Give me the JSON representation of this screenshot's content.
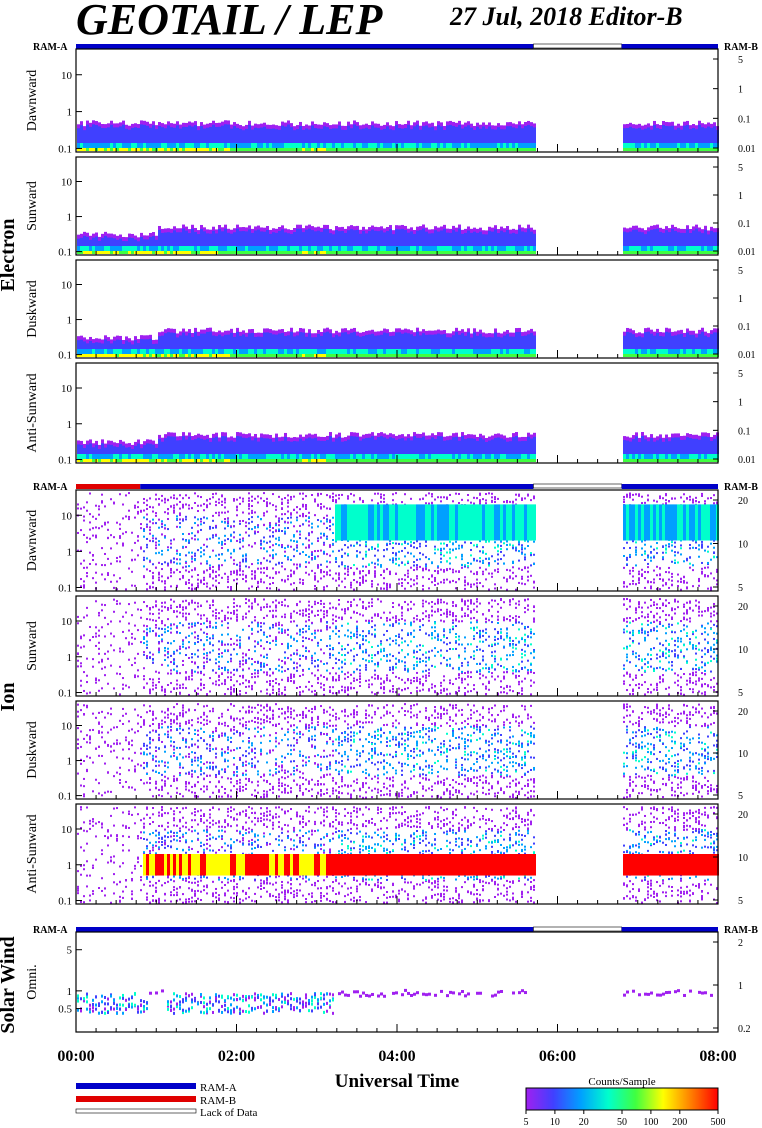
{
  "header": {
    "title": "GEOTAIL / LEP",
    "date_editor": "27 Jul, 2018   Editor-B"
  },
  "labels": {
    "ram_a": "RAM-A",
    "ram_b": "RAM-B",
    "x_axis_title": "Universal Time",
    "electron": "Electron",
    "ion": "Ion",
    "solar_wind": "Solar Wind",
    "colorbar_title": "Counts/Sample",
    "legend_ram_a": "RAM-A",
    "legend_ram_b": "RAM-B",
    "legend_lack": "Lack of Data"
  },
  "colors": {
    "ram_a": "#0000c8",
    "ram_b": "#e00000",
    "colormap": [
      "#a020f0",
      "#4040ff",
      "#00a0ff",
      "#00ffcc",
      "#40ff40",
      "#ffff00",
      "#ff8000",
      "#ff0000"
    ]
  },
  "chart_data": {
    "type": "heatmap",
    "x_ticks": [
      "00:00",
      "02:00",
      "04:00",
      "06:00",
      "08:00"
    ],
    "x_range_hours": [
      0,
      8
    ],
    "data_gap_hours": [
      5.7,
      6.8
    ],
    "colorbar": {
      "ticks": [
        "5",
        "10",
        "20",
        "50",
        "100",
        "200",
        "500"
      ],
      "range": [
        5,
        500
      ],
      "log": true
    },
    "mode_bars": {
      "electron": [
        {
          "start": 0,
          "end": 5.7,
          "mode": "RAM-A"
        },
        {
          "start": 5.7,
          "end": 6.8,
          "mode": "Lack of Data"
        },
        {
          "start": 6.8,
          "end": 8,
          "mode": "RAM-A"
        }
      ],
      "ion": [
        {
          "start": 0,
          "end": 0.8,
          "mode": "RAM-B"
        },
        {
          "start": 0.8,
          "end": 5.7,
          "mode": "RAM-A"
        },
        {
          "start": 5.7,
          "end": 6.8,
          "mode": "Lack of Data"
        },
        {
          "start": 6.8,
          "end": 8,
          "mode": "RAM-A"
        }
      ],
      "solar_wind": [
        {
          "start": 0,
          "end": 5.7,
          "mode": "RAM-A"
        },
        {
          "start": 5.7,
          "end": 6.8,
          "mode": "Lack of Data"
        },
        {
          "start": 6.8,
          "end": 8,
          "mode": "RAM-A"
        }
      ]
    },
    "panels": [
      {
        "group": "Electron",
        "label": "Dawnward",
        "left_ticks": [
          "10",
          "1",
          "0.1"
        ],
        "right_ticks": [
          "5",
          "1",
          "0.1",
          "0.01"
        ],
        "left_range": [
          0.08,
          50
        ],
        "log": true
      },
      {
        "group": "Electron",
        "label": "Sunward",
        "left_ticks": [
          "10",
          "1",
          "0.1"
        ],
        "right_ticks": [
          "5",
          "1",
          "0.1",
          "0.01"
        ],
        "left_range": [
          0.08,
          50
        ],
        "log": true
      },
      {
        "group": "Electron",
        "label": "Duskward",
        "left_ticks": [
          "10",
          "1",
          "0.1"
        ],
        "right_ticks": [
          "5",
          "1",
          "0.1",
          "0.01"
        ],
        "left_range": [
          0.08,
          50
        ],
        "log": true
      },
      {
        "group": "Electron",
        "label": "Anti-Sunward",
        "left_ticks": [
          "10",
          "1",
          "0.1"
        ],
        "right_ticks": [
          "5",
          "1",
          "0.1",
          "0.01"
        ],
        "left_range": [
          0.08,
          50
        ],
        "log": true
      },
      {
        "group": "Ion",
        "label": "Dawnward",
        "left_ticks": [
          "10",
          "1",
          "0.1"
        ],
        "right_ticks": [
          "20",
          "10",
          "5"
        ],
        "left_range": [
          0.08,
          50
        ],
        "log": true
      },
      {
        "group": "Ion",
        "label": "Sunward",
        "left_ticks": [
          "10",
          "1",
          "0.1"
        ],
        "right_ticks": [
          "20",
          "10",
          "5"
        ],
        "left_range": [
          0.08,
          50
        ],
        "log": true
      },
      {
        "group": "Ion",
        "label": "Duskward",
        "left_ticks": [
          "10",
          "1",
          "0.1"
        ],
        "right_ticks": [
          "20",
          "10",
          "5"
        ],
        "left_range": [
          0.08,
          50
        ],
        "log": true
      },
      {
        "group": "Ion",
        "label": "Anti-Sunward",
        "left_ticks": [
          "10",
          "1",
          "0.1"
        ],
        "right_ticks": [
          "20",
          "10",
          "5"
        ],
        "left_range": [
          0.08,
          50
        ],
        "log": true
      },
      {
        "group": "Solar Wind",
        "label": "Omni.",
        "left_ticks": [
          "5",
          "1",
          "0.5"
        ],
        "right_ticks": [
          "2",
          "1",
          "0.2"
        ],
        "left_range": [
          0.2,
          10
        ],
        "log": true
      }
    ]
  }
}
